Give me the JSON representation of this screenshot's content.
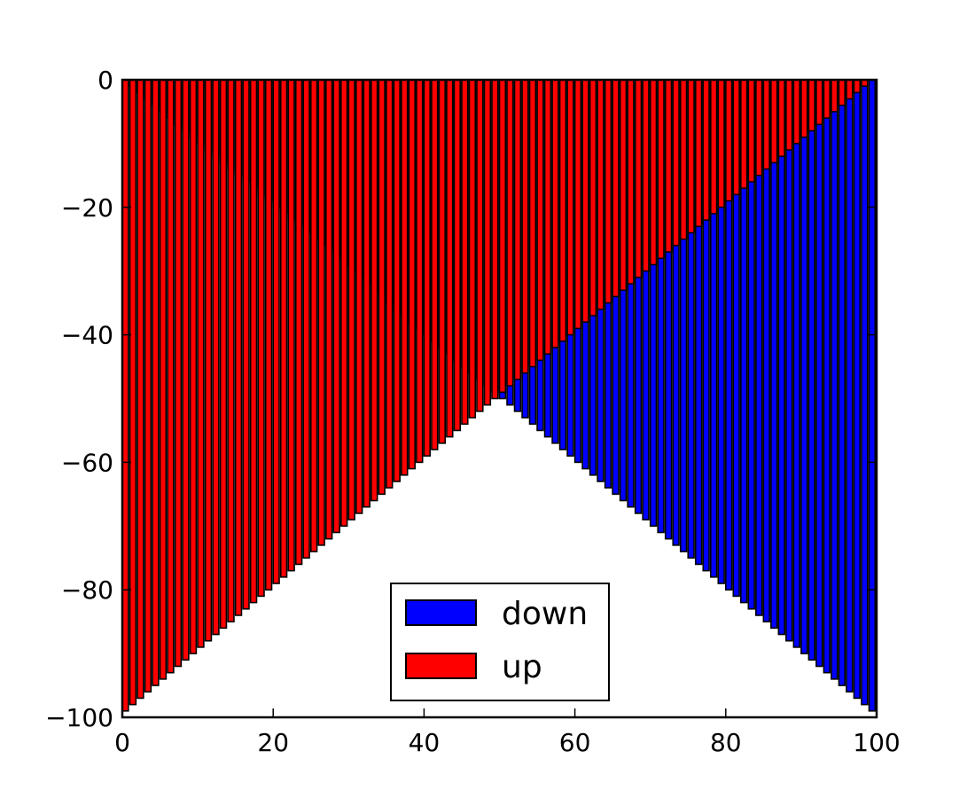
{
  "chart_data": {
    "type": "bar",
    "title": "",
    "xlabel": "",
    "ylabel": "",
    "xlim": [
      0,
      100
    ],
    "ylim": [
      -100,
      0
    ],
    "xticks": [
      0,
      20,
      40,
      60,
      80,
      100
    ],
    "yticks": [
      0,
      -20,
      -40,
      -60,
      -80,
      -100
    ],
    "xtick_labels": [
      "0",
      "20",
      "40",
      "60",
      "80",
      "100"
    ],
    "ytick_labels": [
      "0",
      "−20",
      "−40",
      "−60",
      "−80",
      "−100"
    ],
    "grid": false,
    "legend_position": "lower-center",
    "bar_width": 0.8,
    "x": [
      0,
      1,
      2,
      3,
      4,
      5,
      6,
      7,
      8,
      9,
      10,
      11,
      12,
      13,
      14,
      15,
      16,
      17,
      18,
      19,
      20,
      21,
      22,
      23,
      24,
      25,
      26,
      27,
      28,
      29,
      30,
      31,
      32,
      33,
      34,
      35,
      36,
      37,
      38,
      39,
      40,
      41,
      42,
      43,
      44,
      45,
      46,
      47,
      48,
      49,
      50,
      51,
      52,
      53,
      54,
      55,
      56,
      57,
      58,
      59,
      60,
      61,
      62,
      63,
      64,
      65,
      66,
      67,
      68,
      69,
      70,
      71,
      72,
      73,
      74,
      75,
      76,
      77,
      78,
      79,
      80,
      81,
      82,
      83,
      84,
      85,
      86,
      87,
      88,
      89,
      90,
      91,
      92,
      93,
      94,
      95,
      96,
      97,
      98,
      99
    ],
    "series": [
      {
        "name": "down",
        "color": "#0000ff",
        "baseline": 0,
        "values": [
          0,
          -1,
          -2,
          -3,
          -4,
          -5,
          -6,
          -7,
          -8,
          -9,
          -10,
          -11,
          -12,
          -13,
          -14,
          -15,
          -16,
          -17,
          -18,
          -19,
          -20,
          -21,
          -22,
          -23,
          -24,
          -25,
          -26,
          -27,
          -28,
          -29,
          -30,
          -31,
          -32,
          -33,
          -34,
          -35,
          -36,
          -37,
          -38,
          -39,
          -40,
          -41,
          -42,
          -43,
          -44,
          -45,
          -46,
          -47,
          -48,
          -49,
          -50,
          -51,
          -52,
          -53,
          -54,
          -55,
          -56,
          -57,
          -58,
          -59,
          -60,
          -61,
          -62,
          -63,
          -64,
          -65,
          -66,
          -67,
          -68,
          -69,
          -70,
          -71,
          -72,
          -73,
          -74,
          -75,
          -76,
          -77,
          -78,
          -79,
          -80,
          -81,
          -82,
          -83,
          -84,
          -85,
          -86,
          -87,
          -88,
          -89,
          -90,
          -91,
          -92,
          -93,
          -94,
          -95,
          -96,
          -97,
          -98,
          -99
        ]
      },
      {
        "name": "up",
        "color": "#ff0000",
        "baseline": 0,
        "values": [
          -99,
          -98,
          -97,
          -96,
          -95,
          -94,
          -93,
          -92,
          -91,
          -90,
          -89,
          -88,
          -87,
          -86,
          -85,
          -84,
          -83,
          -82,
          -81,
          -80,
          -79,
          -78,
          -77,
          -76,
          -75,
          -74,
          -73,
          -72,
          -71,
          -70,
          -69,
          -68,
          -67,
          -66,
          -65,
          -64,
          -63,
          -62,
          -61,
          -60,
          -59,
          -58,
          -57,
          -56,
          -55,
          -54,
          -53,
          -52,
          -51,
          -50,
          -49,
          -48,
          -47,
          -46,
          -45,
          -44,
          -43,
          -42,
          -41,
          -40,
          -39,
          -38,
          -37,
          -36,
          -35,
          -34,
          -33,
          -32,
          -31,
          -30,
          -29,
          -28,
          -27,
          -26,
          -25,
          -24,
          -23,
          -22,
          -21,
          -20,
          -19,
          -18,
          -17,
          -16,
          -15,
          -14,
          -13,
          -12,
          -11,
          -10,
          -9,
          -8,
          -7,
          -6,
          -5,
          -4,
          -3,
          -2,
          -1,
          0
        ]
      }
    ]
  }
}
